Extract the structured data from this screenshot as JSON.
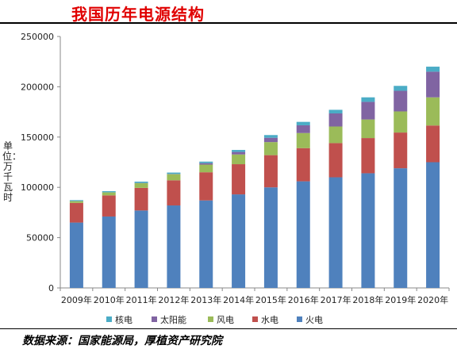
{
  "header": {
    "title": "我国历年电源结构"
  },
  "footer": {
    "source": "数据来源：国家能源局，厚植资产研究院"
  },
  "colors": {
    "火电": "#4f81bd",
    "水电": "#c0504d",
    "风电": "#9bbb59",
    "太阳能": "#8064a2",
    "核电": "#4bacc6"
  },
  "chart_data": {
    "type": "bar",
    "stacked": true,
    "title": "我国历年电源结构",
    "ylabel": "单位：万千瓦时",
    "xlabel": "",
    "ylim": [
      0,
      250000
    ],
    "yticks": [
      0,
      50000,
      100000,
      150000,
      200000,
      250000
    ],
    "grid": false,
    "legend_position": "bottom",
    "legend_order": [
      "核电",
      "太阳能",
      "风电",
      "水电",
      "火电"
    ],
    "categories": [
      "2009年",
      "2010年",
      "2011年",
      "2012年",
      "2013年",
      "2014年",
      "2015年",
      "2016年",
      "2017年",
      "2018年",
      "2019年",
      "2020年"
    ],
    "series": [
      {
        "name": "火电",
        "values": [
          65000,
          71000,
          77000,
          82000,
          87000,
          93000,
          100000,
          106000,
          110000,
          114000,
          119000,
          125000
        ]
      },
      {
        "name": "水电",
        "values": [
          19500,
          21000,
          22500,
          25000,
          28000,
          30000,
          32000,
          33000,
          34000,
          35000,
          35500,
          36500
        ]
      },
      {
        "name": "风电",
        "values": [
          1800,
          3000,
          4700,
          6100,
          7600,
          9700,
          13000,
          15000,
          16500,
          18500,
          21000,
          28000
        ]
      },
      {
        "name": "太阳能",
        "values": [
          100,
          100,
          200,
          300,
          1500,
          2500,
          4300,
          7700,
          13000,
          17500,
          20500,
          25500
        ]
      },
      {
        "name": "核电",
        "values": [
          900,
          1100,
          1300,
          1300,
          1500,
          2000,
          2700,
          3400,
          3600,
          4500,
          4900,
          5000
        ]
      }
    ]
  }
}
